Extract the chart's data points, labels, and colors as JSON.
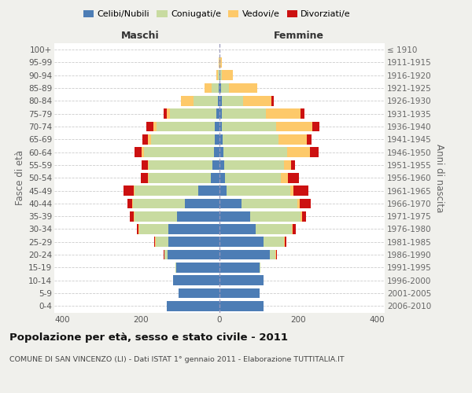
{
  "age_groups": [
    "0-4",
    "5-9",
    "10-14",
    "15-19",
    "20-24",
    "25-29",
    "30-34",
    "35-39",
    "40-44",
    "45-49",
    "50-54",
    "55-59",
    "60-64",
    "65-69",
    "70-74",
    "75-79",
    "80-84",
    "85-89",
    "90-94",
    "95-99",
    "100+"
  ],
  "birth_years": [
    "2006-2010",
    "2001-2005",
    "1996-2000",
    "1991-1995",
    "1986-1990",
    "1981-1985",
    "1976-1980",
    "1971-1975",
    "1966-1970",
    "1961-1965",
    "1956-1960",
    "1951-1955",
    "1946-1950",
    "1941-1945",
    "1936-1940",
    "1931-1935",
    "1926-1930",
    "1921-1925",
    "1916-1920",
    "1911-1915",
    "≤ 1910"
  ],
  "male": {
    "celibi": [
      135,
      105,
      118,
      110,
      132,
      130,
      130,
      108,
      88,
      55,
      22,
      18,
      15,
      12,
      12,
      8,
      5,
      3,
      0,
      0,
      0
    ],
    "coniugati": [
      0,
      0,
      0,
      2,
      8,
      33,
      75,
      108,
      132,
      162,
      158,
      162,
      178,
      162,
      148,
      118,
      62,
      18,
      4,
      1,
      0
    ],
    "vedovi": [
      0,
      0,
      0,
      0,
      1,
      1,
      2,
      2,
      2,
      2,
      2,
      3,
      5,
      8,
      8,
      8,
      32,
      18,
      5,
      1,
      0
    ],
    "divorziati": [
      0,
      0,
      0,
      0,
      1,
      2,
      3,
      10,
      12,
      25,
      18,
      15,
      18,
      15,
      18,
      8,
      0,
      0,
      0,
      0,
      0
    ]
  },
  "female": {
    "nubili": [
      112,
      102,
      112,
      102,
      128,
      112,
      92,
      78,
      55,
      18,
      14,
      12,
      10,
      8,
      5,
      5,
      5,
      3,
      1,
      0,
      0
    ],
    "coniugate": [
      0,
      0,
      0,
      2,
      14,
      52,
      92,
      128,
      142,
      162,
      142,
      152,
      162,
      142,
      138,
      112,
      55,
      20,
      5,
      1,
      0
    ],
    "vedove": [
      0,
      0,
      0,
      0,
      1,
      1,
      2,
      4,
      6,
      8,
      18,
      18,
      58,
      72,
      92,
      88,
      72,
      72,
      28,
      5,
      0
    ],
    "divorziate": [
      0,
      0,
      0,
      0,
      2,
      4,
      8,
      10,
      28,
      38,
      28,
      10,
      22,
      12,
      18,
      10,
      5,
      0,
      0,
      0,
      0
    ]
  },
  "colors": {
    "celibi": "#4d7db5",
    "coniugati": "#c8dba0",
    "vedovi": "#fdc96a",
    "divorziati": "#cc1111"
  },
  "xlim": 420,
  "title": "Popolazione per età, sesso e stato civile - 2011",
  "subtitle": "COMUNE DI SAN VINCENZO (LI) - Dati ISTAT 1° gennaio 2011 - Elaborazione TUTTITALIA.IT",
  "ylabel_left": "Fasce di età",
  "ylabel_right": "Anni di nascita",
  "xlabel_left": "Maschi",
  "xlabel_right": "Femmine",
  "bg_color": "#f0f0ec",
  "plot_bg": "#ffffff"
}
